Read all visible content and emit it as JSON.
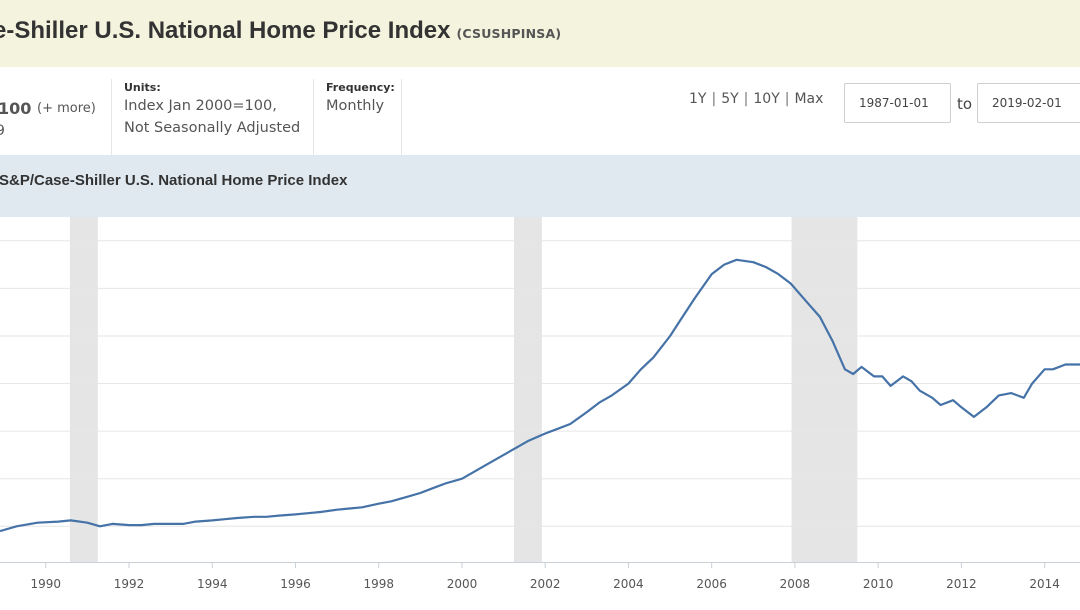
{
  "header": {
    "title": "e-Shiller U.S. National Home Price Index",
    "series_id": "(CSUSHPINSA)"
  },
  "observation": {
    "value": "100",
    "more_label": "(+ more)",
    "date_fragment": "9"
  },
  "units": {
    "label": "Units:",
    "line1": "Index Jan 2000=100,",
    "line2": "Not Seasonally Adjusted"
  },
  "frequency": {
    "label": "Frequency:",
    "value": "Monthly"
  },
  "range_links": [
    "1Y",
    "5Y",
    "10Y",
    "Max"
  ],
  "date_range": {
    "start": "1987-01-01",
    "to_label": "to",
    "end": "2019-02-01"
  },
  "chart_title": "S&P/Case-Shiller U.S. National Home Price Index",
  "colors": {
    "title_bar": "#f3f3de",
    "chart_header": "#e1e9f0",
    "line": "#4572a7",
    "recession": "#e5e5e5",
    "grid": "#e6e6e6"
  },
  "chart_data": {
    "type": "line",
    "title": "S&P/Case-Shiller U.S. National Home Price Index",
    "x_tick_labels": [
      "1990",
      "1992",
      "1994",
      "1996",
      "1998",
      "2000",
      "2002",
      "2004",
      "2006",
      "2008",
      "2010",
      "2012",
      "2014"
    ],
    "xlim": [
      1988.9,
      2014.85
    ],
    "ylim": [
      55,
      200
    ],
    "gridlines_y": [
      70,
      90,
      110,
      130,
      150,
      170,
      190
    ],
    "grid": true,
    "recessions": [
      [
        1990.58,
        1991.25
      ],
      [
        2001.25,
        2001.92
      ],
      [
        2007.92,
        2009.5
      ]
    ],
    "series": [
      {
        "x": [
          1988.9,
          1989.3,
          1989.8,
          1990.3,
          1990.6,
          1991.0,
          1991.3,
          1991.6,
          1992.0,
          1992.3,
          1992.6,
          1993.0,
          1993.3,
          1993.6,
          1994.0,
          1994.3,
          1994.6,
          1995.0,
          1995.3,
          1995.6,
          1996.0,
          1996.3,
          1996.6,
          1997.0,
          1997.3,
          1997.6,
          1998.0,
          1998.3,
          1998.6,
          1999.0,
          1999.3,
          1999.6,
          2000.0,
          2000.3,
          2000.6,
          2001.0,
          2001.3,
          2001.6,
          2002.0,
          2002.3,
          2002.6,
          2003.0,
          2003.3,
          2003.6,
          2004.0,
          2004.3,
          2004.6,
          2005.0,
          2005.3,
          2005.6,
          2006.0,
          2006.3,
          2006.6,
          2007.0,
          2007.3,
          2007.6,
          2007.9,
          2008.3,
          2008.6,
          2008.9,
          2009.2,
          2009.4,
          2009.6,
          2009.9,
          2010.1,
          2010.3,
          2010.6,
          2010.8,
          2011.0,
          2011.3,
          2011.5,
          2011.8,
          2012.0,
          2012.3,
          2012.6,
          2012.9,
          2013.2,
          2013.5,
          2013.7,
          2014.0,
          2014.2,
          2014.5,
          2014.85
        ],
        "y": [
          68,
          70,
          71.5,
          72,
          72.5,
          71.5,
          70,
          71,
          70.5,
          70.5,
          71,
          71,
          71,
          72,
          72.5,
          73,
          73.5,
          74,
          74,
          74.5,
          75,
          75.5,
          76,
          77,
          77.5,
          78,
          79.5,
          80.5,
          82,
          84,
          86,
          88,
          90,
          93,
          96,
          100,
          103,
          106,
          109,
          111,
          113,
          118,
          122,
          125,
          130,
          136,
          141,
          150,
          158,
          166,
          176,
          180,
          182,
          181,
          179,
          176,
          172,
          164,
          158,
          148,
          136,
          134,
          137,
          133,
          133,
          129,
          133,
          131,
          127,
          124,
          121,
          123,
          120,
          116,
          120,
          125,
          126,
          124,
          130,
          136,
          136,
          138,
          138
        ]
      }
    ]
  }
}
